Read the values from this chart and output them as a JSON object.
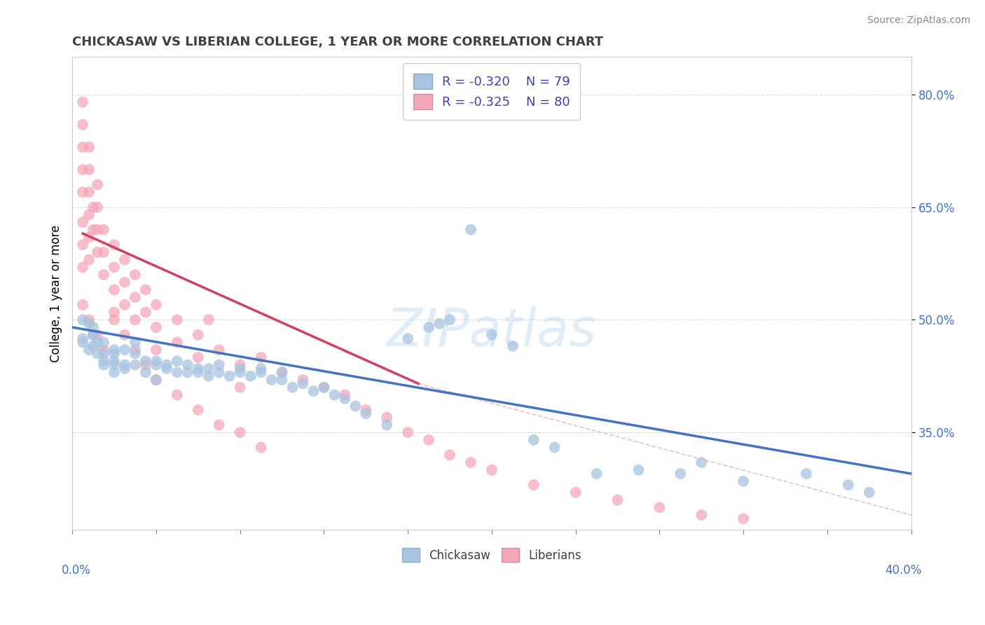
{
  "title": "CHICKASAW VS LIBERIAN COLLEGE, 1 YEAR OR MORE CORRELATION CHART",
  "source": "Source: ZipAtlas.com",
  "ylabel": "College, 1 year or more",
  "legend_blue": {
    "R": "-0.320",
    "N": "79",
    "label": "Chickasaw"
  },
  "legend_pink": {
    "R": "-0.325",
    "N": "80",
    "label": "Liberians"
  },
  "blue_color": "#a8c4e0",
  "pink_color": "#f4a7b9",
  "blue_line_color": "#4472c4",
  "pink_line_color": "#d04060",
  "dash_line_color": "#e8b0c0",
  "watermark": "ZIPatlas",
  "background_color": "#ffffff",
  "grid_color": "#d8d8d8",
  "xlim": [
    0.0,
    0.4
  ],
  "ylim": [
    0.22,
    0.85
  ],
  "y_ticks": [
    0.35,
    0.5,
    0.65,
    0.8
  ],
  "y_tick_labels": [
    "35.0%",
    "50.0%",
    "65.0%",
    "80.0%"
  ],
  "blue_line_x0": 0.0,
  "blue_line_y0": 0.49,
  "blue_line_x1": 0.4,
  "blue_line_y1": 0.295,
  "pink_line_x0": 0.005,
  "pink_line_y0": 0.615,
  "pink_line_x1": 0.165,
  "pink_line_y1": 0.415,
  "dash_line_x0": 0.165,
  "dash_line_y0": 0.415,
  "dash_line_x1": 0.4,
  "dash_line_y1": 0.24,
  "blue_scatter_x": [
    0.005,
    0.005,
    0.005,
    0.008,
    0.008,
    0.01,
    0.01,
    0.01,
    0.01,
    0.012,
    0.012,
    0.015,
    0.015,
    0.015,
    0.015,
    0.02,
    0.02,
    0.02,
    0.02,
    0.02,
    0.025,
    0.025,
    0.025,
    0.03,
    0.03,
    0.03,
    0.035,
    0.035,
    0.04,
    0.04,
    0.04,
    0.045,
    0.045,
    0.05,
    0.05,
    0.055,
    0.055,
    0.06,
    0.06,
    0.065,
    0.065,
    0.07,
    0.07,
    0.075,
    0.08,
    0.08,
    0.085,
    0.09,
    0.09,
    0.095,
    0.1,
    0.1,
    0.105,
    0.11,
    0.115,
    0.12,
    0.125,
    0.13,
    0.135,
    0.14,
    0.15,
    0.16,
    0.17,
    0.175,
    0.18,
    0.19,
    0.2,
    0.21,
    0.22,
    0.23,
    0.25,
    0.27,
    0.29,
    0.3,
    0.32,
    0.35,
    0.37,
    0.38
  ],
  "blue_scatter_y": [
    0.5,
    0.475,
    0.47,
    0.495,
    0.46,
    0.48,
    0.49,
    0.465,
    0.48,
    0.455,
    0.47,
    0.44,
    0.445,
    0.47,
    0.455,
    0.43,
    0.445,
    0.455,
    0.46,
    0.44,
    0.44,
    0.435,
    0.46,
    0.44,
    0.455,
    0.47,
    0.43,
    0.445,
    0.44,
    0.42,
    0.445,
    0.435,
    0.44,
    0.43,
    0.445,
    0.43,
    0.44,
    0.435,
    0.43,
    0.435,
    0.425,
    0.43,
    0.44,
    0.425,
    0.435,
    0.43,
    0.425,
    0.43,
    0.435,
    0.42,
    0.42,
    0.43,
    0.41,
    0.415,
    0.405,
    0.41,
    0.4,
    0.395,
    0.385,
    0.375,
    0.36,
    0.475,
    0.49,
    0.495,
    0.5,
    0.62,
    0.48,
    0.465,
    0.34,
    0.33,
    0.295,
    0.3,
    0.295,
    0.31,
    0.285,
    0.295,
    0.28,
    0.27
  ],
  "pink_scatter_x": [
    0.005,
    0.005,
    0.005,
    0.005,
    0.005,
    0.005,
    0.005,
    0.005,
    0.008,
    0.008,
    0.008,
    0.008,
    0.008,
    0.008,
    0.01,
    0.01,
    0.012,
    0.012,
    0.012,
    0.012,
    0.015,
    0.015,
    0.015,
    0.02,
    0.02,
    0.02,
    0.02,
    0.025,
    0.025,
    0.025,
    0.03,
    0.03,
    0.03,
    0.035,
    0.035,
    0.04,
    0.04,
    0.04,
    0.05,
    0.05,
    0.06,
    0.06,
    0.065,
    0.07,
    0.08,
    0.08,
    0.09,
    0.1,
    0.11,
    0.12,
    0.13,
    0.14,
    0.15,
    0.16,
    0.17,
    0.18,
    0.19,
    0.2,
    0.22,
    0.24,
    0.26,
    0.28,
    0.3,
    0.32,
    0.005,
    0.008,
    0.012,
    0.015,
    0.02,
    0.025,
    0.03,
    0.035,
    0.04,
    0.05,
    0.06,
    0.07,
    0.08,
    0.09
  ],
  "pink_scatter_y": [
    0.79,
    0.76,
    0.73,
    0.7,
    0.67,
    0.63,
    0.6,
    0.57,
    0.73,
    0.7,
    0.67,
    0.64,
    0.61,
    0.58,
    0.65,
    0.62,
    0.68,
    0.65,
    0.62,
    0.59,
    0.62,
    0.59,
    0.56,
    0.6,
    0.57,
    0.54,
    0.51,
    0.58,
    0.55,
    0.52,
    0.56,
    0.53,
    0.5,
    0.54,
    0.51,
    0.52,
    0.49,
    0.46,
    0.5,
    0.47,
    0.48,
    0.45,
    0.5,
    0.46,
    0.44,
    0.41,
    0.45,
    0.43,
    0.42,
    0.41,
    0.4,
    0.38,
    0.37,
    0.35,
    0.34,
    0.32,
    0.31,
    0.3,
    0.28,
    0.27,
    0.26,
    0.25,
    0.24,
    0.235,
    0.52,
    0.5,
    0.48,
    0.46,
    0.5,
    0.48,
    0.46,
    0.44,
    0.42,
    0.4,
    0.38,
    0.36,
    0.35,
    0.33
  ]
}
